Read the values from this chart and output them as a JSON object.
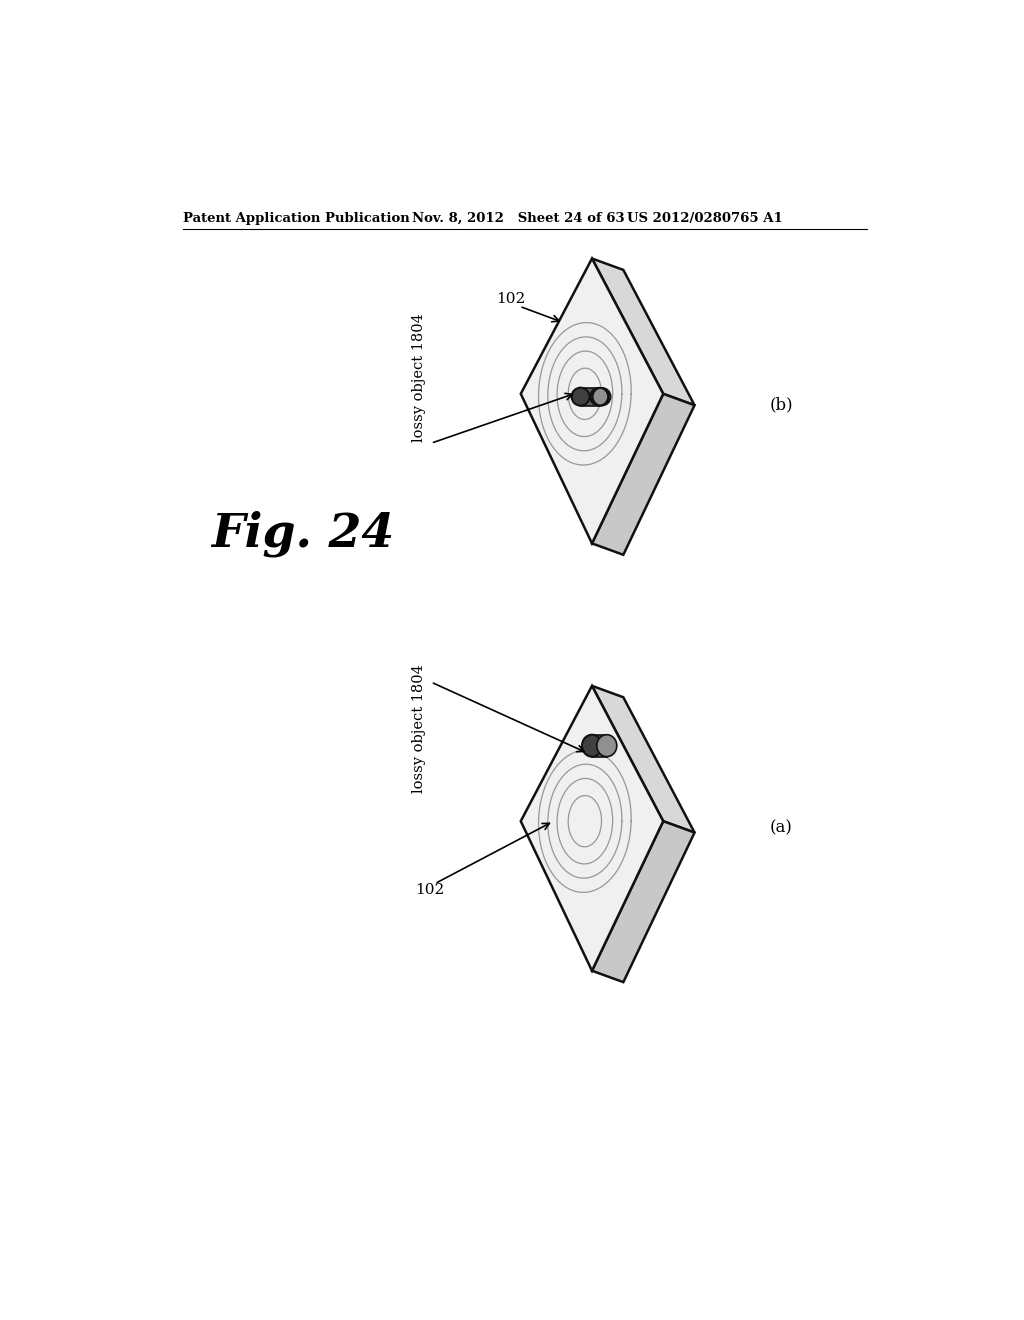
{
  "bg_color": "#ffffff",
  "header_left": "Patent Application Publication",
  "header_mid": "Nov. 8, 2012   Sheet 24 of 63",
  "header_right": "US 2012/0280765 A1",
  "fig_label": "Fig. 24",
  "diagram_a_label": "(a)",
  "diagram_b_label": "(b)",
  "label_102_a": "102",
  "label_102_b": "102",
  "label_lossy_a": "lossy object 1804",
  "label_lossy_b": "lossy object 1804",
  "pad_face_color": "#f0f0f0",
  "pad_edge_color": "#111111",
  "pad_side_color": "#d8d8d8",
  "coil_color": "#888888",
  "obj_color": "#505050",
  "obj_edge": "#111111"
}
